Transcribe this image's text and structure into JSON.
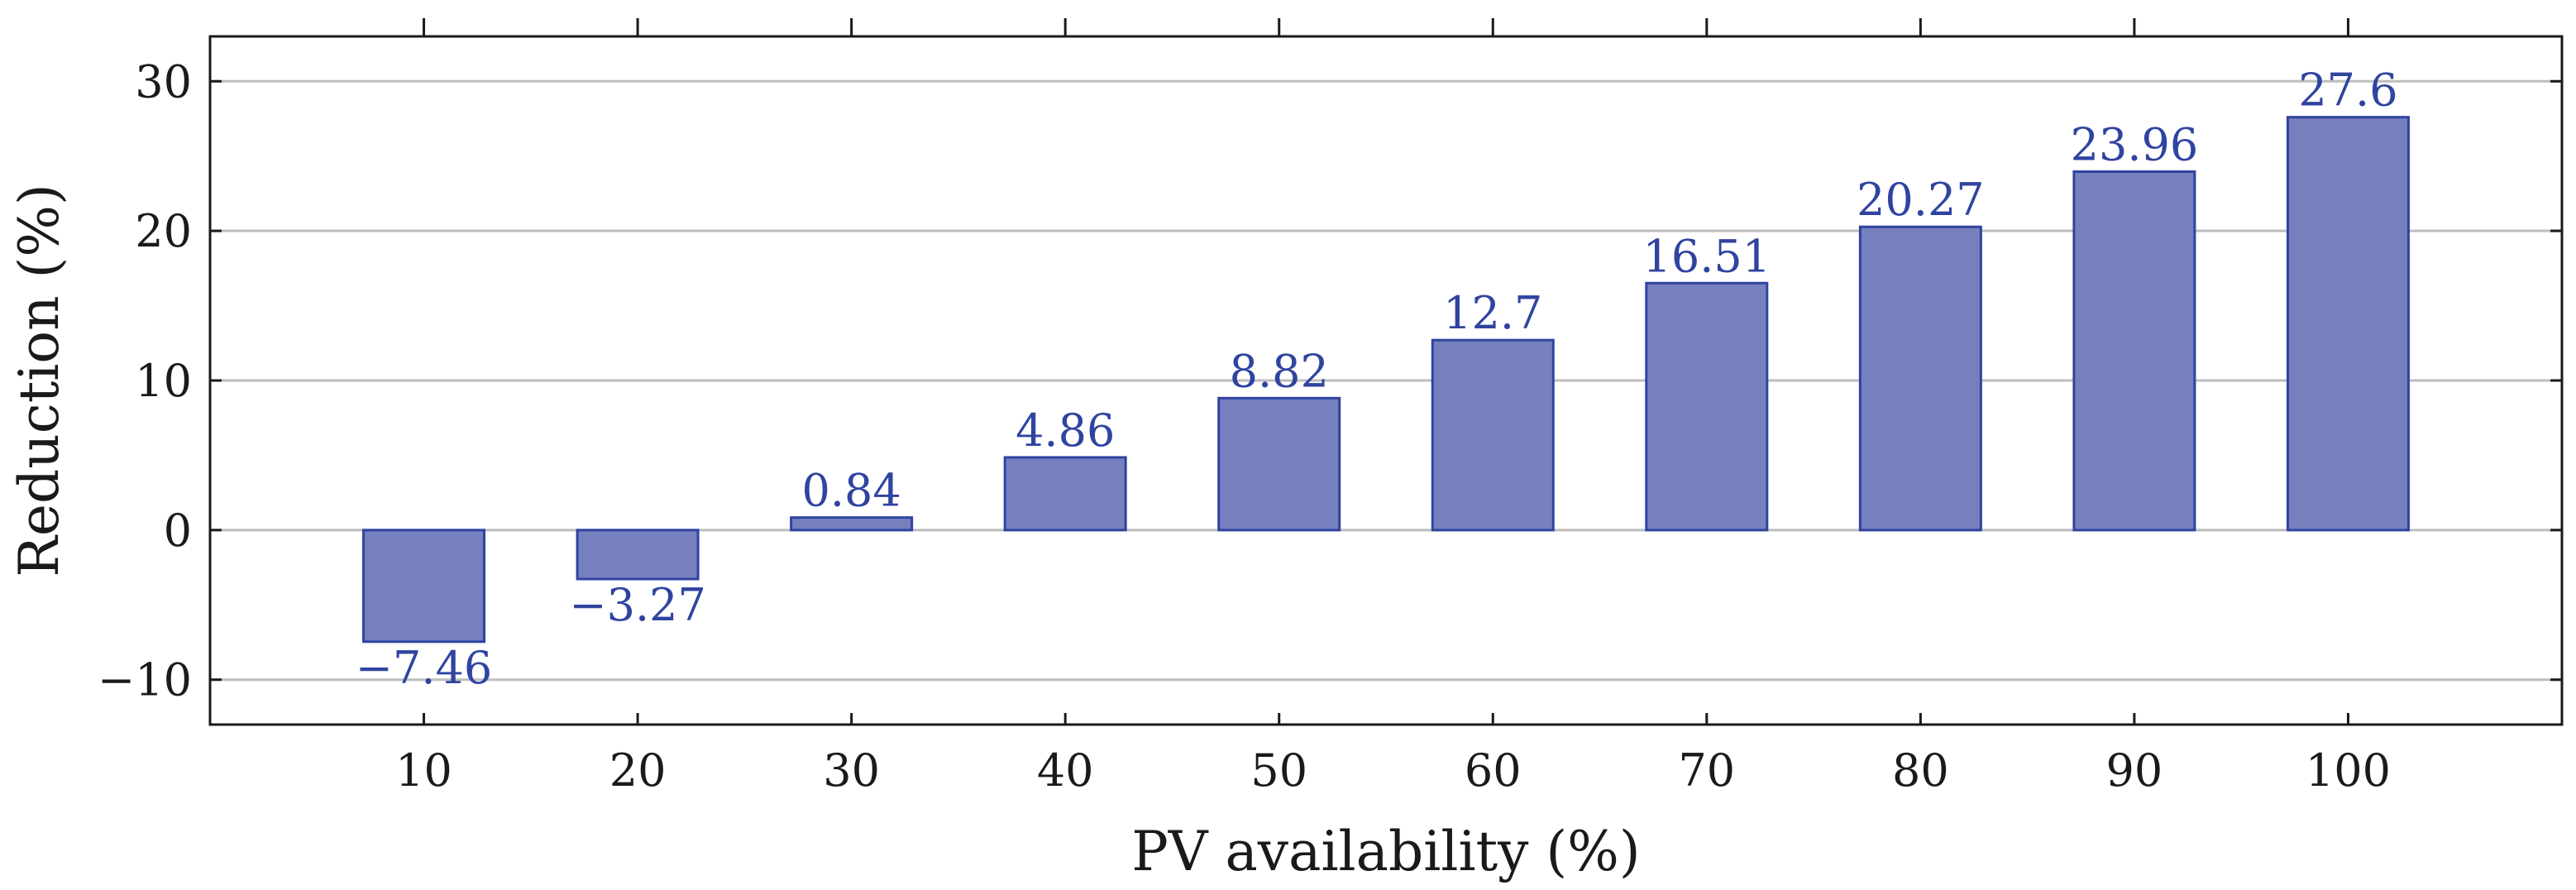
{
  "chart_data": {
    "type": "bar",
    "categories": [
      "10",
      "20",
      "30",
      "40",
      "50",
      "60",
      "70",
      "80",
      "90",
      "100"
    ],
    "values": [
      -7.46,
      -3.27,
      0.84,
      4.86,
      8.82,
      12.7,
      16.51,
      20.27,
      23.96,
      27.6
    ],
    "data_labels": [
      "−7.46",
      "−3.27",
      "0.84",
      "4.86",
      "8.82",
      "12.7",
      "16.51",
      "20.27",
      "23.96",
      "27.6"
    ],
    "xlabel": "PV availability (%)",
    "ylabel": "Reduction (%)",
    "xlim": [
      0,
      110
    ],
    "ylim": [
      -13,
      33
    ],
    "yticks": [
      -10,
      0,
      10,
      20,
      30
    ],
    "ytick_labels": [
      "−10",
      "0",
      "10",
      "20",
      "30"
    ],
    "grid": "horizontal",
    "colors": {
      "bar_fill": "#7780bf",
      "bar_stroke": "#2f44a0",
      "label": "#2f44a0",
      "grid": "#bdbdbd",
      "axis": "#1a1a1a"
    }
  }
}
